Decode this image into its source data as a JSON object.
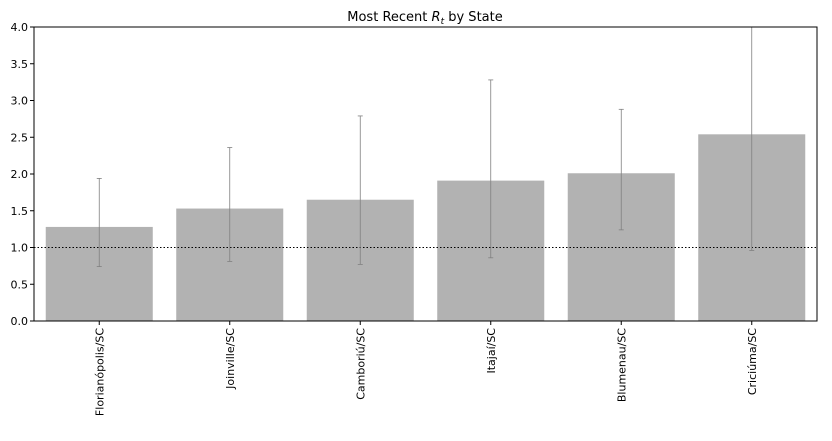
{
  "chart_data": {
    "type": "bar",
    "title": "Most Recent",
    "title_symbol": "R",
    "title_subscript": "t",
    "title_suffix": "by State",
    "categories": [
      "Florianópolis/SC",
      "Joinville/SC",
      "Camboriú/SC",
      "Itajaí/SC",
      "Blumenau/SC",
      "Criciúma/SC"
    ],
    "values": [
      1.28,
      1.53,
      1.65,
      1.91,
      2.01,
      2.54
    ],
    "error_low": [
      0.74,
      0.81,
      0.77,
      0.86,
      1.24,
      0.96
    ],
    "error_high": [
      1.94,
      2.36,
      2.79,
      3.28,
      2.88,
      4.2
    ],
    "ylim": [
      0,
      4.0
    ],
    "yticks": [
      "0.0",
      "0.5",
      "1.0",
      "1.5",
      "2.0",
      "2.5",
      "3.0",
      "3.5",
      "4.0"
    ],
    "reference_line": 1.0,
    "colors": {
      "bar": "#b2b2b2",
      "error": "#808080",
      "axis": "#000000"
    },
    "grid": false,
    "legend": "none"
  }
}
